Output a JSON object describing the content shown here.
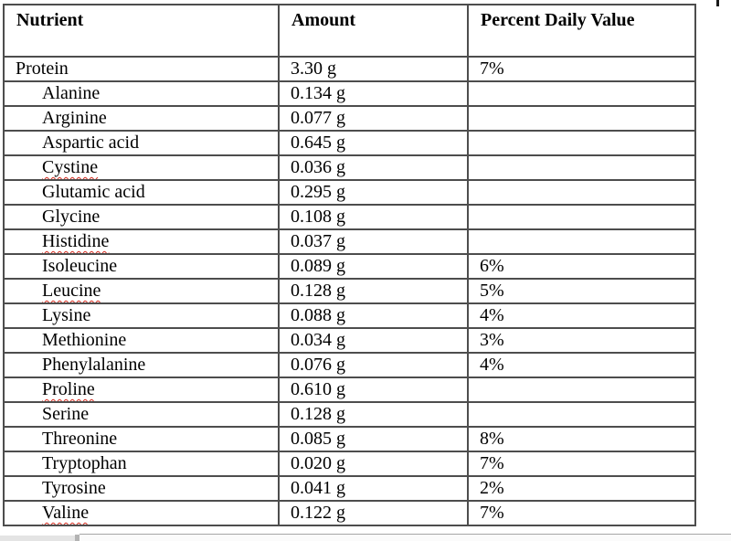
{
  "table": {
    "headers": [
      "Nutrient",
      "Amount",
      "Percent Daily Value"
    ],
    "rows": [
      {
        "nutrient": "Protein",
        "amount": "3.30 g",
        "pdv": "7%",
        "indent": false,
        "misspelled": false
      },
      {
        "nutrient": "Alanine",
        "amount": "0.134 g",
        "pdv": "",
        "indent": true,
        "misspelled": false
      },
      {
        "nutrient": "Arginine",
        "amount": "0.077 g",
        "pdv": "",
        "indent": true,
        "misspelled": false
      },
      {
        "nutrient": "Aspartic acid",
        "amount": "0.645 g",
        "pdv": "",
        "indent": true,
        "misspelled": false
      },
      {
        "nutrient": "Cystine",
        "amount": "0.036 g",
        "pdv": "",
        "indent": true,
        "misspelled": true
      },
      {
        "nutrient": "Glutamic acid",
        "amount": "0.295 g",
        "pdv": "",
        "indent": true,
        "misspelled": false
      },
      {
        "nutrient": "Glycine",
        "amount": "0.108 g",
        "pdv": "",
        "indent": true,
        "misspelled": false
      },
      {
        "nutrient": "Histidine",
        "amount": "0.037 g",
        "pdv": "",
        "indent": true,
        "misspelled": true
      },
      {
        "nutrient": "Isoleucine",
        "amount": "0.089 g",
        "pdv": "6%",
        "indent": true,
        "misspelled": false
      },
      {
        "nutrient": "Leucine",
        "amount": "0.128 g",
        "pdv": "5%",
        "indent": true,
        "misspelled": true
      },
      {
        "nutrient": "Lysine",
        "amount": "0.088 g",
        "pdv": "4%",
        "indent": true,
        "misspelled": false
      },
      {
        "nutrient": "Methionine",
        "amount": "0.034 g",
        "pdv": "3%",
        "indent": true,
        "misspelled": false
      },
      {
        "nutrient": "Phenylalanine",
        "amount": "0.076 g",
        "pdv": "4%",
        "indent": true,
        "misspelled": false
      },
      {
        "nutrient": "Proline",
        "amount": "0.610 g",
        "pdv": "",
        "indent": true,
        "misspelled": true
      },
      {
        "nutrient": "Serine",
        "amount": "0.128 g",
        "pdv": "",
        "indent": true,
        "misspelled": false
      },
      {
        "nutrient": "Threonine",
        "amount": "0.085 g",
        "pdv": "8%",
        "indent": true,
        "misspelled": false
      },
      {
        "nutrient": "Tryptophan",
        "amount": "0.020 g",
        "pdv": "7%",
        "indent": true,
        "misspelled": false
      },
      {
        "nutrient": "Tyrosine",
        "amount": "0.041 g",
        "pdv": "2%",
        "indent": true,
        "misspelled": false
      },
      {
        "nutrient": "Valine",
        "amount": "0.122 g",
        "pdv": "7%",
        "indent": true,
        "misspelled": true
      }
    ]
  },
  "colors": {
    "table_border": "#4d4d4d",
    "text": "#000000",
    "spellcheck_squiggle": "#d42a1e",
    "scrollbar_track": "#e4e4e4"
  }
}
